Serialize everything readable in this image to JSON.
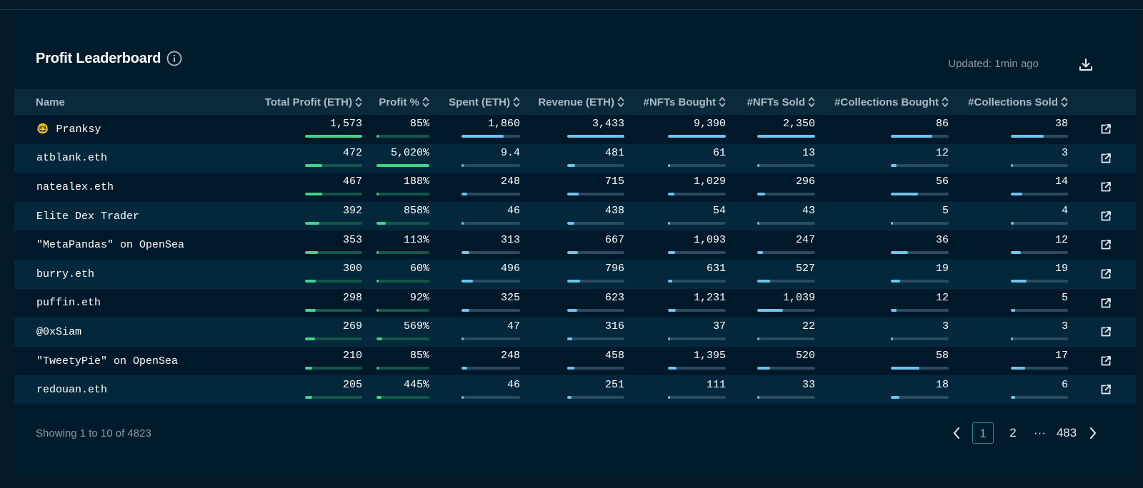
{
  "title": "Profit Leaderboard",
  "updated": "Updated: 1min ago",
  "columns": {
    "name": "Name",
    "profit": "Total Profit (ETH)",
    "profit_pct": "Profit %",
    "spent": "Spent (ETH)",
    "revenue": "Revenue (ETH)",
    "nfts_bought": "#NFTs Bought",
    "nfts_sold": "#NFTs Sold",
    "coll_bought": "#Collections Bought",
    "coll_sold": "#Collections Sold"
  },
  "rows": [
    {
      "emoji": "🤓",
      "name": "Pranksy",
      "profit": "1,573",
      "profit_pct": "85%",
      "spent": "1,860",
      "revenue": "3,433",
      "nfts_bought": "9,390",
      "nfts_sold": "2,350",
      "coll_bought": "86",
      "coll_sold": "38",
      "fill": {
        "profit": 1.0,
        "profit_pct": 0.02,
        "spent": 0.72,
        "revenue": 1.0,
        "nfts_bought": 1.0,
        "nfts_sold": 1.0,
        "coll_bought": 0.72,
        "coll_sold": 0.58
      }
    },
    {
      "emoji": "",
      "name": "atblank.eth",
      "profit": "472",
      "profit_pct": "5,020%",
      "spent": "9.4",
      "revenue": "481",
      "nfts_bought": "61",
      "nfts_sold": "13",
      "coll_bought": "12",
      "coll_sold": "3",
      "fill": {
        "profit": 0.3,
        "profit_pct": 1.0,
        "spent": 0.01,
        "revenue": 0.14,
        "nfts_bought": 0.01,
        "nfts_sold": 0.01,
        "coll_bought": 0.1,
        "coll_sold": 0.04
      }
    },
    {
      "emoji": "",
      "name": "natealex.eth",
      "profit": "467",
      "profit_pct": "188%",
      "spent": "248",
      "revenue": "715",
      "nfts_bought": "1,029",
      "nfts_sold": "296",
      "coll_bought": "56",
      "coll_sold": "14",
      "fill": {
        "profit": 0.3,
        "profit_pct": 0.04,
        "spent": 0.1,
        "revenue": 0.2,
        "nfts_bought": 0.11,
        "nfts_sold": 0.13,
        "coll_bought": 0.47,
        "coll_sold": 0.2
      }
    },
    {
      "emoji": "",
      "name": "Elite Dex Trader",
      "profit": "392",
      "profit_pct": "858%",
      "spent": "46",
      "revenue": "438",
      "nfts_bought": "54",
      "nfts_sold": "43",
      "coll_bought": "5",
      "coll_sold": "4",
      "fill": {
        "profit": 0.25,
        "profit_pct": 0.17,
        "spent": 0.02,
        "revenue": 0.13,
        "nfts_bought": 0.01,
        "nfts_sold": 0.02,
        "coll_bought": 0.04,
        "coll_sold": 0.05
      }
    },
    {
      "emoji": "",
      "name": "\"MetaPandas\" on OpenSea",
      "profit": "353",
      "profit_pct": "113%",
      "spent": "313",
      "revenue": "667",
      "nfts_bought": "1,093",
      "nfts_sold": "247",
      "coll_bought": "36",
      "coll_sold": "12",
      "fill": {
        "profit": 0.22,
        "profit_pct": 0.02,
        "spent": 0.13,
        "revenue": 0.19,
        "nfts_bought": 0.12,
        "nfts_sold": 0.1,
        "coll_bought": 0.3,
        "coll_sold": 0.17
      }
    },
    {
      "emoji": "",
      "name": "burry.eth",
      "profit": "300",
      "profit_pct": "60%",
      "spent": "496",
      "revenue": "796",
      "nfts_bought": "631",
      "nfts_sold": "527",
      "coll_bought": "19",
      "coll_sold": "19",
      "fill": {
        "profit": 0.19,
        "profit_pct": 0.01,
        "spent": 0.2,
        "revenue": 0.23,
        "nfts_bought": 0.07,
        "nfts_sold": 0.22,
        "coll_bought": 0.16,
        "coll_sold": 0.28
      }
    },
    {
      "emoji": "",
      "name": "puffin.eth",
      "profit": "298",
      "profit_pct": "92%",
      "spent": "325",
      "revenue": "623",
      "nfts_bought": "1,231",
      "nfts_sold": "1,039",
      "coll_bought": "12",
      "coll_sold": "5",
      "fill": {
        "profit": 0.19,
        "profit_pct": 0.02,
        "spent": 0.13,
        "revenue": 0.18,
        "nfts_bought": 0.13,
        "nfts_sold": 0.44,
        "coll_bought": 0.1,
        "coll_sold": 0.07
      }
    },
    {
      "emoji": "",
      "name": "@0xSiam",
      "profit": "269",
      "profit_pct": "569%",
      "spent": "47",
      "revenue": "316",
      "nfts_bought": "37",
      "nfts_sold": "22",
      "coll_bought": "3",
      "coll_sold": "3",
      "fill": {
        "profit": 0.17,
        "profit_pct": 0.11,
        "spent": 0.02,
        "revenue": 0.09,
        "nfts_bought": 0.01,
        "nfts_sold": 0.01,
        "coll_bought": 0.03,
        "coll_sold": 0.04
      }
    },
    {
      "emoji": "",
      "name": "\"TweetyPie\" on OpenSea",
      "profit": "210",
      "profit_pct": "85%",
      "spent": "248",
      "revenue": "458",
      "nfts_bought": "1,395",
      "nfts_sold": "520",
      "coll_bought": "58",
      "coll_sold": "17",
      "fill": {
        "profit": 0.13,
        "profit_pct": 0.02,
        "spent": 0.1,
        "revenue": 0.13,
        "nfts_bought": 0.15,
        "nfts_sold": 0.22,
        "coll_bought": 0.49,
        "coll_sold": 0.25
      }
    },
    {
      "emoji": "",
      "name": "redouan.eth",
      "profit": "205",
      "profit_pct": "445%",
      "spent": "46",
      "revenue": "251",
      "nfts_bought": "111",
      "nfts_sold": "33",
      "coll_bought": "18",
      "coll_sold": "6",
      "fill": {
        "profit": 0.13,
        "profit_pct": 0.09,
        "spent": 0.02,
        "revenue": 0.07,
        "nfts_bought": 0.01,
        "nfts_sold": 0.01,
        "coll_bought": 0.15,
        "coll_sold": 0.08
      }
    }
  ],
  "footer": {
    "showing": "Showing 1 to 10 of 4823"
  },
  "pagination": {
    "pages": [
      "1",
      "2"
    ],
    "ellipsis": "···",
    "last": "483",
    "current": "1"
  },
  "colors": {
    "profit_bar": "#3fd48a",
    "activity_bar": "#6cc6ec",
    "accent": "#2a8b83",
    "background": "#001b2c"
  },
  "icons": {
    "info": "info-icon",
    "download": "download-icon",
    "sort": "sort-icon",
    "row_link": "external-link-icon",
    "prev": "chevron-left-icon",
    "next": "chevron-right-icon"
  }
}
